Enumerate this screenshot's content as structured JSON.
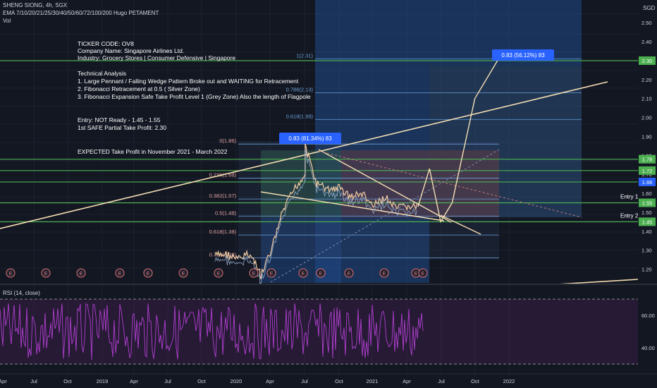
{
  "header": {
    "symbol_line": "SHENG SIONG, 4h, SGX",
    "ema_line": "EMA 7/10/20/21/25/30/40/50/60/72/100/200 Hugo PETAMENT",
    "vol_label": "Vol",
    "currency": "SGD"
  },
  "notes": {
    "ticker": "TICKER CODE: OV8",
    "company": "Company Name: Singapore Airlines Ltd.",
    "industry": "Industry: Grocery Stores | Consumer Defensive | Singapore",
    "ta_title": "Technical Analysis",
    "ta_1": "1. Large Pennant / Falling Wedge Pattern Broke out and WAITING for Retracement",
    "ta_2": "2. Fibonacci Retracement at 0.5 ( Silver Zone)",
    "ta_3": "3. Fibonacci Expansion Safe Take Profit Level 1 (Grey Zone) Also the length of Flagpole",
    "entry": "Entry: NOT Ready - 1.45 - 1.55",
    "take_profit": "1st SAFE Partial Take Profit: 2.30",
    "expected": "EXPECTED Take Profit in November 2021 - March 2022"
  },
  "chart_data": {
    "type": "line",
    "title": "SHENG SIONG, 4h, SGX",
    "price_axis": {
      "ylim": [
        1.12,
        2.62
      ],
      "ticks": [
        "2.50",
        "2.40",
        "2.30",
        "2.20",
        "2.10",
        "2.00",
        "1.90",
        "1.80",
        "1.70",
        "1.60",
        "1.50",
        "1.40",
        "1.30",
        "1.20"
      ]
    },
    "time_axis": {
      "ticks": [
        "Apr",
        "Jul",
        "Oct",
        "2019",
        "Apr",
        "Jul",
        "Oct",
        "2020",
        "Apr",
        "Jul",
        "Oct",
        "2021",
        "Apr",
        "Jul",
        "Oct",
        "2022"
      ]
    },
    "price_series": {
      "x": [
        "2019-11",
        "2019-12",
        "2020-01",
        "2020-02",
        "2020-03",
        "2020-03",
        "2020-04",
        "2020-05",
        "2020-06",
        "2020-07",
        "2020-07",
        "2020-08",
        "2020-09",
        "2020-10",
        "2020-11",
        "2020-12",
        "2021-01",
        "2021-02",
        "2021-03",
        "2021-04",
        "2021-05"
      ],
      "y": [
        1.27,
        1.28,
        1.25,
        1.28,
        1.2,
        1.15,
        1.3,
        1.5,
        1.62,
        1.7,
        1.85,
        1.65,
        1.62,
        1.63,
        1.58,
        1.6,
        1.53,
        1.58,
        1.52,
        1.53,
        1.53
      ]
    },
    "projection": {
      "x": [
        "2021-05",
        "2021-06",
        "2021-07",
        "2021-08",
        "2021-10",
        "2021-12"
      ],
      "y": [
        1.53,
        1.73,
        1.45,
        1.55,
        2.1,
        2.3
      ]
    },
    "horizontal_levels": [
      {
        "label": "2.30",
        "value": 2.3
      },
      {
        "label": "1.78",
        "value": 1.78
      },
      {
        "label": "1.72",
        "value": 1.72
      },
      {
        "label": "1.66",
        "value": 1.66
      },
      {
        "label": "1.55",
        "value": 1.55
      },
      {
        "label": "1.45",
        "value": 1.45
      }
    ],
    "entry_labels": [
      {
        "label": "Entry 1",
        "value": 1.55
      },
      {
        "label": "Entry 2",
        "value": 1.45
      }
    ],
    "fib_retracement": [
      {
        "label": "0(1.86)",
        "value": 1.86
      },
      {
        "label": "0.236(1.68)",
        "value": 1.68
      },
      {
        "label": "0.382(1.57)",
        "value": 1.57
      },
      {
        "label": "0.5(1.48)",
        "value": 1.48
      },
      {
        "label": "0.618(1.38)",
        "value": 1.38
      },
      {
        "label": "0.786(1.26)",
        "value": 1.26
      }
    ],
    "fib_extension": [
      {
        "label": "1(2.31)",
        "value": 2.31
      },
      {
        "label": "0.786(2.13)",
        "value": 2.13
      },
      {
        "label": "0.618(1.99)",
        "value": 1.99
      }
    ],
    "callouts": [
      {
        "label": "0.83 (56.12%) 83",
        "value": 2.37
      },
      {
        "label": "0.83 (81.34%) 83",
        "value": 1.9
      }
    ],
    "rsi": {
      "title": "RSI (14, close)",
      "ticks": [
        "60.00",
        "40.00"
      ],
      "upper_band": 70,
      "lower_band": 30
    },
    "colors": {
      "background": "#131722",
      "green": "#4caf50",
      "trendline": "#f5deb3",
      "fib_blue": "#2962ff",
      "rsi_purple": "#9c27b0",
      "label_blue": "#2962ff"
    }
  }
}
